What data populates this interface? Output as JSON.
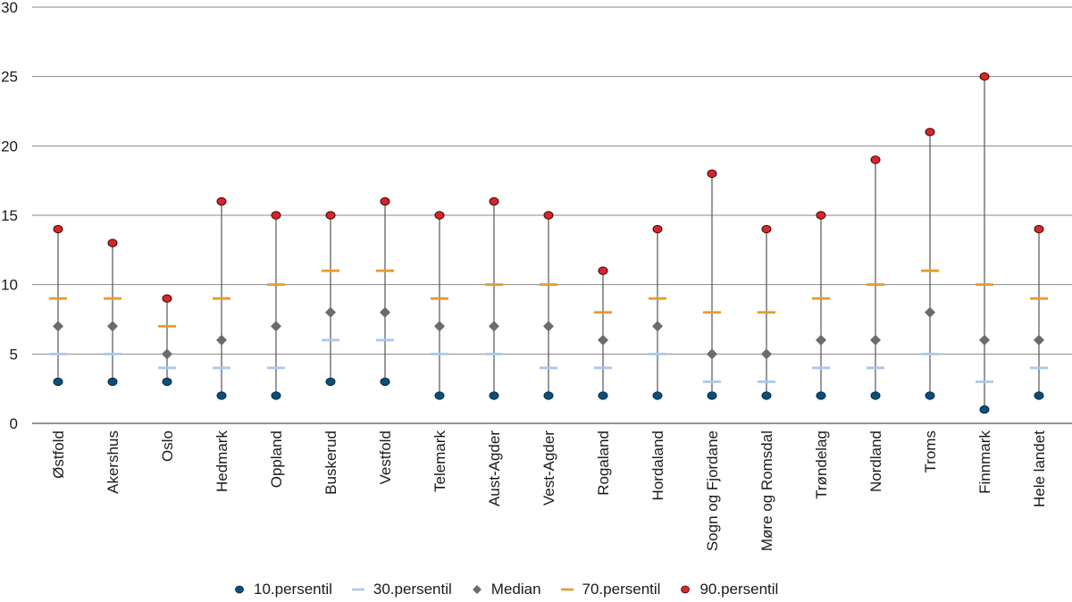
{
  "chart_data": {
    "type": "scatter",
    "title": "",
    "xlabel": "",
    "ylabel": "",
    "ylim": [
      0,
      30
    ],
    "yticks": [
      0,
      5,
      10,
      15,
      20,
      25,
      30
    ],
    "grid": true,
    "legend_position": "bottom",
    "categories": [
      "Østfold",
      "Akershus",
      "Oslo",
      "Hedmark",
      "Oppland",
      "Buskerud",
      "Vestfold",
      "Telemark",
      "Aust-Agder",
      "Vest-Agder",
      "Rogaland",
      "Hordaland",
      "Sogn og Fjordane",
      "Møre og Romsdal",
      "Trøndelag",
      "Nordland",
      "Troms",
      "Finnmark",
      "Hele landet"
    ],
    "series": [
      {
        "name": "10.persentil",
        "marker": "circle",
        "color": "#0a4f7a",
        "values": [
          3,
          3,
          3,
          2,
          2,
          3,
          3,
          2,
          2,
          2,
          2,
          2,
          2,
          2,
          2,
          2,
          2,
          1,
          2
        ]
      },
      {
        "name": "30.persentil",
        "marker": "dash",
        "color": "#a9c9ea",
        "values": [
          5,
          5,
          4,
          4,
          4,
          6,
          6,
          5,
          5,
          4,
          4,
          5,
          3,
          3,
          4,
          4,
          5,
          3,
          4
        ]
      },
      {
        "name": "Median",
        "marker": "diamond",
        "color": "#6b6b6b",
        "values": [
          7,
          7,
          5,
          6,
          7,
          8,
          8,
          7,
          7,
          7,
          6,
          7,
          5,
          5,
          6,
          6,
          8,
          6,
          6
        ]
      },
      {
        "name": "70.persentil",
        "marker": "dash",
        "color": "#e89a2b",
        "values": [
          9,
          9,
          7,
          9,
          10,
          11,
          11,
          9,
          10,
          10,
          8,
          9,
          8,
          8,
          9,
          10,
          11,
          10,
          9
        ]
      },
      {
        "name": "90.persentil",
        "marker": "circle",
        "color": "#d7262b",
        "values": [
          14,
          13,
          9,
          16,
          15,
          15,
          16,
          15,
          16,
          15,
          11,
          14,
          18,
          14,
          15,
          19,
          21,
          25,
          14
        ]
      }
    ]
  },
  "legend": {
    "items": [
      {
        "label": "10.persentil"
      },
      {
        "label": "30.persentil"
      },
      {
        "label": "Median"
      },
      {
        "label": "70.persentil"
      },
      {
        "label": "90.persentil"
      }
    ]
  }
}
